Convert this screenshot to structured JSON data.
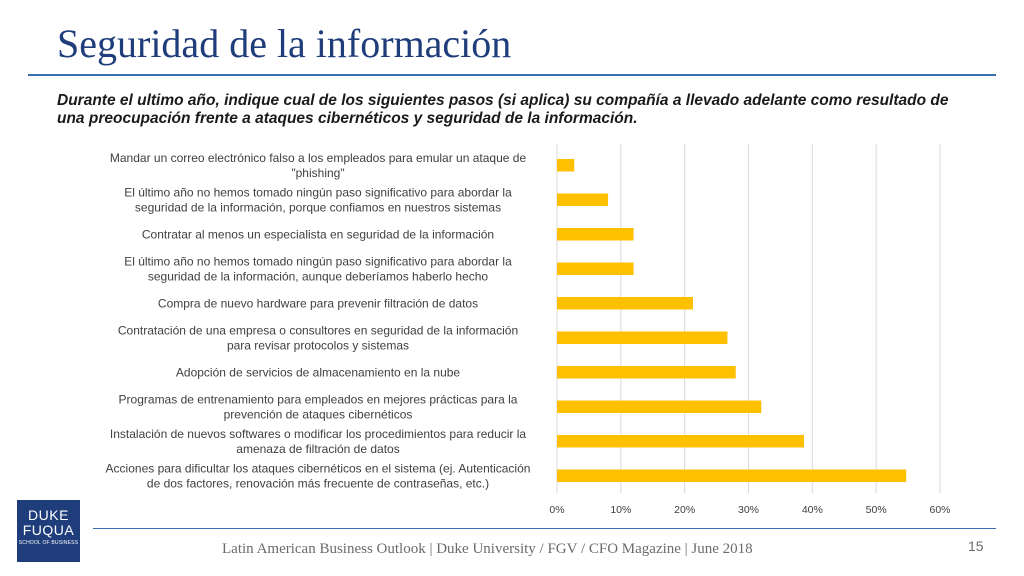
{
  "slide": {
    "title": "Seguridad de la información",
    "subtitle": "Durante el ultimo año, indique cual de los siguientes pasos (si aplica) su compañía a llevado adelante como resultado de una preocupación frente a ataques cibernéticos y seguridad de la información.",
    "footer": "Latin American Business Outlook | Duke University / FGV / CFO Magazine | June 2018",
    "page_number": "15",
    "logo": {
      "line1": "DUKE",
      "line2": "FUQUA",
      "line3": "SCHOOL OF BUSINESS"
    }
  },
  "colors": {
    "bar": "#ffc000",
    "grid": "#d9d9d9",
    "title": "#1f3d7a",
    "rule": "#3a6fb0"
  },
  "chart_data": {
    "type": "bar",
    "orientation": "horizontal",
    "categories": [
      [
        "Mandar un correo electrónico falso a los empleados para emular un ataque de",
        "\"phishing\""
      ],
      [
        "El último año no hemos tomado ningún paso significativo para abordar la",
        "seguridad de la información, porque confiamos en nuestros sistemas"
      ],
      [
        "Contratar al menos un especialista en seguridad de la información"
      ],
      [
        "El último año no hemos tomado ningún paso significativo para abordar la",
        "seguridad de la información, aunque deberíamos haberlo hecho"
      ],
      [
        "Compra de nuevo hardware para prevenir filtración de datos"
      ],
      [
        "Contratación de una empresa o consultores en seguridad de la información",
        "para revisar protocolos y sistemas"
      ],
      [
        "Adopción de servicios de almacenamiento en la nube"
      ],
      [
        "Programas de entrenamiento para empleados en mejores prácticas para la",
        "prevención de ataques cibernéticos"
      ],
      [
        "Instalación de nuevos softwares o modificar los procedimientos para reducir la",
        "amenaza de filtración de datos"
      ],
      [
        "Acciones para dificultar los ataques cibernéticos en el sistema (ej. Autenticación",
        "de dos factores, renovación más frecuente de contraseñas, etc.)"
      ]
    ],
    "values": [
      2.7,
      8.0,
      12.0,
      12.0,
      21.3,
      26.7,
      28.0,
      32.0,
      38.7,
      54.7
    ],
    "xlim": [
      0,
      60
    ],
    "xticks": [
      "0%",
      "10%",
      "20%",
      "30%",
      "40%",
      "50%",
      "60%"
    ],
    "xtick_values": [
      0,
      10,
      20,
      30,
      40,
      50,
      60
    ],
    "grid": true,
    "legend": "none"
  }
}
